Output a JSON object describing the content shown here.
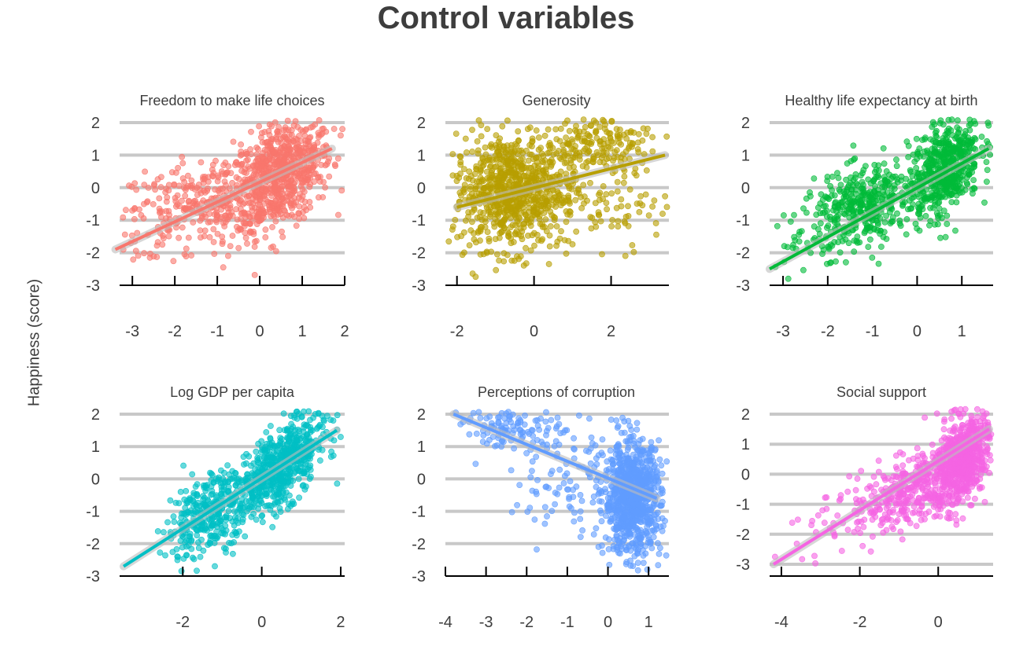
{
  "chart_data": {
    "type": "scatter",
    "title": "Control variables",
    "ylabel": "Happiness (score)",
    "panels": [
      {
        "title": "Freedom to make life choices",
        "color": "#F8766D",
        "xlim": [
          -3.3,
          2.0
        ],
        "xticks": [
          -3,
          -2,
          -1,
          0,
          1,
          2
        ],
        "ylim": [
          -3,
          2.1
        ],
        "yticks": [
          -3,
          -2,
          -1,
          0,
          1,
          2
        ],
        "trend": {
          "x": [
            -3.4,
            1.7
          ],
          "y": [
            -1.9,
            1.2
          ]
        },
        "clusters": [
          {
            "cx": 0.5,
            "cy": 0.4,
            "sx": 0.6,
            "sy": 0.8,
            "n": 700,
            "slope": 0.6
          },
          {
            "cx": -1.2,
            "cy": -0.4,
            "sx": 0.9,
            "sy": 0.7,
            "n": 300,
            "slope": 0.3
          },
          {
            "cx": -2.6,
            "cy": -1.2,
            "sx": 0.5,
            "sy": 0.8,
            "n": 40,
            "slope": 0.3
          }
        ]
      },
      {
        "title": "Generosity",
        "color": "#B79F00",
        "xlim": [
          -2.3,
          3.5
        ],
        "xticks": [
          -2,
          0,
          2
        ],
        "ylim": [
          -3,
          2.1
        ],
        "yticks": [
          -3,
          -2,
          -1,
          0,
          1,
          2
        ],
        "trend": {
          "x": [
            -2.0,
            3.4
          ],
          "y": [
            -0.6,
            1.0
          ]
        },
        "clusters": [
          {
            "cx": -0.5,
            "cy": -0.1,
            "sx": 0.8,
            "sy": 0.9,
            "n": 850,
            "slope": 0.0
          },
          {
            "cx": 1.6,
            "cy": 1.4,
            "sx": 0.7,
            "sy": 0.4,
            "n": 150,
            "slope": 0.1
          },
          {
            "cx": 2.2,
            "cy": -0.3,
            "sx": 0.7,
            "sy": 0.8,
            "n": 80,
            "slope": 0.0
          }
        ]
      },
      {
        "title": "Healthy life expectancy at birth",
        "color": "#00BA38",
        "xlim": [
          -3.3,
          1.7
        ],
        "xticks": [
          -3,
          -2,
          -1,
          0,
          1
        ],
        "ylim": [
          -3,
          2.1
        ],
        "yticks": [
          -3,
          -2,
          -1,
          0,
          1,
          2
        ],
        "trend": {
          "x": [
            -3.3,
            1.6
          ],
          "y": [
            -2.5,
            1.2
          ]
        },
        "clusters": [
          {
            "cx": 0.6,
            "cy": 0.6,
            "sx": 0.4,
            "sy": 0.7,
            "n": 550,
            "slope": 0.8
          },
          {
            "cx": -1.2,
            "cy": -0.6,
            "sx": 0.55,
            "sy": 0.6,
            "n": 380,
            "slope": 0.4
          },
          {
            "cx": -2.4,
            "cy": -1.4,
            "sx": 0.5,
            "sy": 0.6,
            "n": 40,
            "slope": 0.5
          }
        ]
      },
      {
        "title": "Log GDP per capita",
        "color": "#00BFC4",
        "xlim": [
          -3.6,
          2.1
        ],
        "xticks": [
          -2,
          0,
          2
        ],
        "ylim": [
          -3,
          2.1
        ],
        "yticks": [
          -3,
          -2,
          -1,
          0,
          1,
          2
        ],
        "trend": {
          "x": [
            -3.5,
            1.9
          ],
          "y": [
            -2.7,
            1.5
          ]
        },
        "clusters": [
          {
            "cx": 0.5,
            "cy": 0.4,
            "sx": 0.55,
            "sy": 0.6,
            "n": 620,
            "slope": 0.9
          },
          {
            "cx": -1.3,
            "cy": -1.0,
            "sx": 0.55,
            "sy": 0.6,
            "n": 350,
            "slope": 0.6
          }
        ]
      },
      {
        "title": "Perceptions of corruption",
        "color": "#619CFF",
        "xlim": [
          -4.0,
          1.5
        ],
        "xticks": [
          -4,
          -3,
          -2,
          -1,
          0,
          1
        ],
        "ylim": [
          -3,
          2.1
        ],
        "yticks": [
          -3,
          -2,
          -1,
          0,
          1,
          2
        ],
        "trend": {
          "x": [
            -3.8,
            1.2
          ],
          "y": [
            2.0,
            -0.6
          ]
        },
        "clusters": [
          {
            "cx": 0.6,
            "cy": -0.6,
            "sx": 0.35,
            "sy": 0.85,
            "n": 900,
            "slope": 0.0
          },
          {
            "cx": -2.4,
            "cy": 1.6,
            "sx": 0.6,
            "sy": 0.3,
            "n": 100,
            "slope": 0.0
          },
          {
            "cx": -0.8,
            "cy": 0.2,
            "sx": 0.8,
            "sy": 1.0,
            "n": 120,
            "slope": 0.0
          }
        ]
      },
      {
        "title": "Social support",
        "color": "#F564E3",
        "xlim": [
          -4.3,
          1.4
        ],
        "xticks": [
          -4,
          -2,
          0
        ],
        "ylim": [
          -3.3,
          2.2
        ],
        "yticks": [
          -3,
          -2,
          -1,
          0,
          1,
          2
        ],
        "trend": {
          "x": [
            -4.2,
            1.3
          ],
          "y": [
            -3.0,
            1.5
          ]
        },
        "clusters": [
          {
            "cx": 0.6,
            "cy": 0.5,
            "sx": 0.4,
            "sy": 0.7,
            "n": 700,
            "slope": 0.9
          },
          {
            "cx": -0.8,
            "cy": -0.6,
            "sx": 0.7,
            "sy": 0.55,
            "n": 300,
            "slope": 0.5
          },
          {
            "cx": -2.7,
            "cy": -1.5,
            "sx": 0.8,
            "sy": 0.6,
            "n": 50,
            "slope": 0.5
          }
        ]
      }
    ]
  }
}
